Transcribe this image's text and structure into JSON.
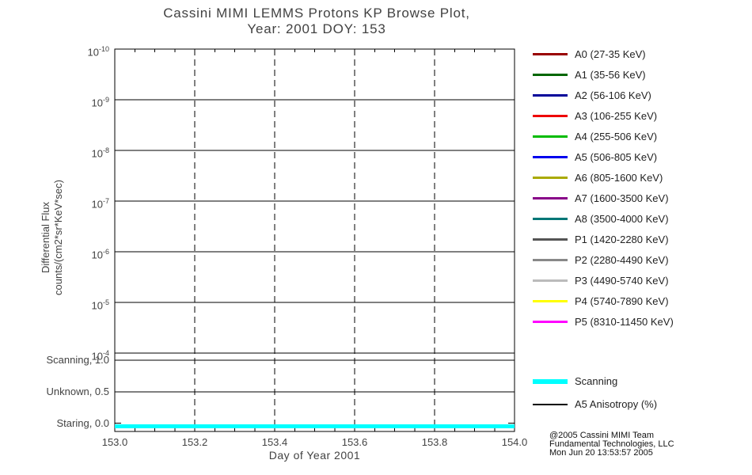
{
  "title": {
    "line1": "Cassini MIMI LEMMS Protons KP Browse Plot,",
    "line2": "Year: 2001 DOY: 153"
  },
  "chart_data": {
    "type": "line",
    "title": "Cassini MIMI LEMMS Protons KP Browse Plot, Year: 2001 DOY: 153",
    "xlabel": "Day of Year 2001",
    "ylabel_line1": "Differential Flux",
    "ylabel_line2": "counts/(cm2*sr*KeV*sec)",
    "x_range": [
      153.0,
      154.0
    ],
    "x_ticks": [
      "153.0",
      "153.2",
      "153.4",
      "153.6",
      "153.8",
      "154.0"
    ],
    "y_scale": "log; 1e-10 at top to 1e-4 at bottom of flux panel",
    "y_tick_exponents": [
      -10,
      -9,
      -8,
      -7,
      -6,
      -5,
      -4
    ],
    "mode_axis_ticks": [
      {
        "label": "Scanning, 1.0",
        "value": 1.0
      },
      {
        "label": "Unknown, 0.5",
        "value": 0.5
      },
      {
        "label": "Staring, 0.0",
        "value": 0.0
      }
    ],
    "grid": {
      "horizontal": "solid black line at each flux decade and at mode levels 1.0 and 0.5",
      "vertical": "dashed black line at each interior x tick (153.2 - 153.8)"
    },
    "series": [
      {
        "name": "Scanning (spacecraft mode indicator)",
        "color": "#00FFFF",
        "x": [
          153.0,
          154.0
        ],
        "y": [
          0.0,
          0.0
        ],
        "style": "thick horizontal cyan line along the very bottom of the plot"
      }
    ],
    "flux_series_plotted": "none visible (flux panel is empty)"
  },
  "legend": {
    "entries": [
      {
        "label": "A0 (27-35 KeV)",
        "color": "#990000"
      },
      {
        "label": "A1 (35-56 KeV)",
        "color": "#006600"
      },
      {
        "label": "A2 (56-106 KeV)",
        "color": "#000099"
      },
      {
        "label": "A3 (106-255 KeV)",
        "color": "#EE0000"
      },
      {
        "label": "A4 (255-506 KeV)",
        "color": "#00BB00"
      },
      {
        "label": "A5 (506-805 KeV)",
        "color": "#0000EE"
      },
      {
        "label": "A6 (805-1600 KeV)",
        "color": "#AAAA00"
      },
      {
        "label": "A7 (1600-3500 KeV)",
        "color": "#880088"
      },
      {
        "label": "A8 (3500-4000 KeV)",
        "color": "#007777"
      },
      {
        "label": "P1 (1420-2280 KeV)",
        "color": "#555555"
      },
      {
        "label": "P2 (2280-4490 KeV)",
        "color": "#888888"
      },
      {
        "label": "P3 (4490-5740 KeV)",
        "color": "#BBBBBB"
      },
      {
        "label": "P4 (5740-7890 KeV)",
        "color": "#FFFF00"
      },
      {
        "label": "P5 (8310-11450 KeV)",
        "color": "#FF00FF"
      }
    ],
    "extra": [
      {
        "label": "Scanning",
        "color": "#00FFFF",
        "thickness": 6
      },
      {
        "label": "A5 Anisotropy (%)",
        "color": "#000000",
        "thickness": 2
      }
    ]
  },
  "credit": {
    "line1": "@2005 Cassini MIMI Team",
    "line2": "Fundamental Technologies, LLC",
    "line3": "Mon Jun 20 13:53:57 2005"
  }
}
